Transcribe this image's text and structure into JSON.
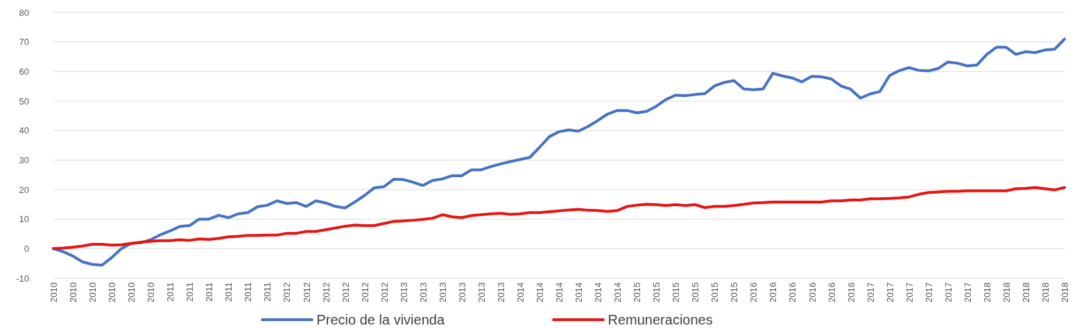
{
  "chart_data": {
    "type": "line",
    "categories": [
      "2010",
      null,
      "2010",
      null,
      "2010",
      null,
      "2010",
      null,
      "2010",
      null,
      "2010",
      null,
      "2011",
      null,
      "2011",
      null,
      "2011",
      null,
      "2011",
      null,
      "2011",
      null,
      "2011",
      null,
      "2012",
      null,
      "2012",
      null,
      "2012",
      null,
      "2012",
      null,
      "2012",
      null,
      "2012",
      null,
      "2013",
      null,
      "2013",
      null,
      "2013",
      null,
      "2013",
      null,
      "2013",
      null,
      "2013",
      null,
      "2014",
      null,
      "2014",
      null,
      "2014",
      null,
      "2014",
      null,
      "2014",
      null,
      "2014",
      null,
      "2015",
      null,
      "2015",
      null,
      "2015",
      null,
      "2015",
      null,
      "2015",
      null,
      "2015",
      null,
      "2016",
      null,
      "2016",
      null,
      "2016",
      null,
      "2016",
      null,
      "2016",
      null,
      "2016",
      null,
      "2017",
      null,
      "2017",
      null,
      "2017",
      null,
      "2017",
      null,
      "2017",
      null,
      "2017",
      null,
      "2018",
      null,
      "2018",
      null,
      "2018",
      null,
      "2018",
      null,
      "2018"
    ],
    "series": [
      {
        "name": "Precio de la vivienda",
        "color": "#4472c4",
        "values": [
          0,
          -1,
          -2.5,
          -4.5,
          -5.3,
          -5.6,
          -3,
          0,
          1.8,
          2,
          3,
          4.7,
          6,
          7.5,
          7.8,
          10,
          10,
          11.3,
          10.5,
          11.8,
          12.2,
          14.2,
          14.7,
          16.2,
          15.3,
          15.6,
          14.3,
          16.2,
          15.5,
          14.3,
          13.8,
          15.8,
          18,
          20.6,
          21,
          23.5,
          23.4,
          22.5,
          21.4,
          23.1,
          23.6,
          24.7,
          24.7,
          26.7,
          26.7,
          27.8,
          28.7,
          29.5,
          30.2,
          30.9,
          34.3,
          37.9,
          39.6,
          40.2,
          39.8,
          41.4,
          43.4,
          45.6,
          46.8,
          46.8,
          46,
          46.5,
          48.2,
          50.5,
          52,
          51.8,
          52.2,
          52.5,
          55.1,
          56.3,
          56.9,
          54.1,
          53.8,
          54.1,
          59.4,
          58.5,
          57.8,
          56.5,
          58.4,
          58.2,
          57.5,
          55.1,
          54,
          51,
          52.4,
          53.2,
          58.6,
          60.3,
          61.3,
          60.4,
          60.2,
          61,
          63.2,
          62.8,
          61.9,
          62.2,
          65.8,
          68.2,
          68.2,
          65.8,
          66.7,
          66.4,
          67.3,
          67.6,
          71
        ]
      },
      {
        "name": "Remuneraciones",
        "color": "#e81414",
        "values": [
          0,
          0.2,
          0.5,
          0.9,
          1.5,
          1.5,
          1.2,
          1.3,
          1.8,
          2.2,
          2.5,
          2.7,
          2.7,
          3,
          2.8,
          3.3,
          3.1,
          3.5,
          4,
          4.2,
          4.5,
          4.5,
          4.6,
          4.6,
          5.2,
          5.2,
          5.8,
          5.8,
          6.4,
          7,
          7.6,
          8,
          7.8,
          7.8,
          8.5,
          9.2,
          9.4,
          9.6,
          9.9,
          10.3,
          11.5,
          10.8,
          10.5,
          11.2,
          11.5,
          11.8,
          12,
          11.6,
          11.8,
          12.2,
          12.2,
          12.5,
          12.8,
          13.1,
          13.3,
          13,
          12.9,
          12.6,
          12.9,
          14.3,
          14.7,
          15,
          14.9,
          14.6,
          14.9,
          14.6,
          14.9,
          13.9,
          14.3,
          14.3,
          14.6,
          15,
          15.5,
          15.6,
          15.8,
          15.8,
          15.8,
          15.8,
          15.8,
          15.8,
          16.2,
          16.2,
          16.5,
          16.5,
          16.9,
          16.9,
          17,
          17.2,
          17.5,
          18.4,
          19,
          19.2,
          19.4,
          19.4,
          19.6,
          19.6,
          19.6,
          19.6,
          19.6,
          20.3,
          20.4,
          20.7,
          20.3,
          19.9,
          20.7
        ]
      }
    ],
    "ylim": [
      -10,
      80
    ],
    "yticks": [
      -10,
      0,
      10,
      20,
      30,
      40,
      50,
      60,
      70,
      80
    ],
    "grid": "y",
    "legend": "bottom"
  }
}
